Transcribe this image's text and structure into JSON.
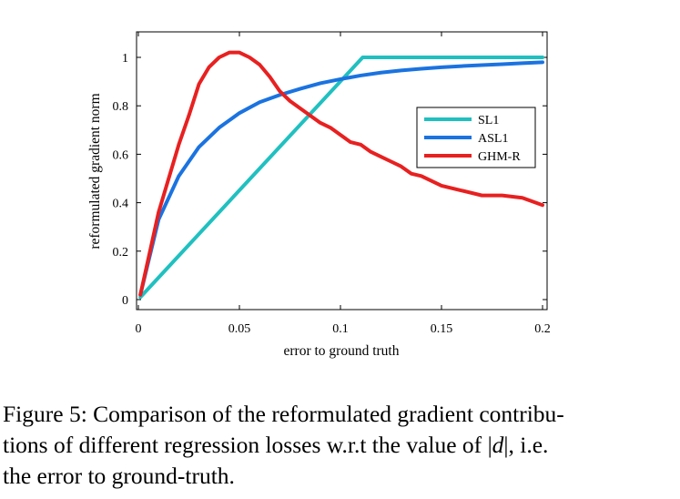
{
  "chart_data": {
    "type": "line",
    "title": "",
    "xlabel": "error to ground truth",
    "ylabel": "reformulated gradient norm",
    "xlim": [
      0,
      0.2
    ],
    "ylim": [
      0,
      1.08
    ],
    "xticks": [
      0,
      0.05,
      0.1,
      0.15,
      0.2
    ],
    "xtick_labels": [
      "0",
      "0.05",
      "0.1",
      "0.15",
      "0.2"
    ],
    "yticks": [
      0,
      0.2,
      0.4,
      0.6,
      0.8,
      1
    ],
    "ytick_labels": [
      "0",
      "0.2",
      "0.4",
      "0.6",
      "0.8",
      "1"
    ],
    "grid": false,
    "legend_position": "right-middle",
    "series": [
      {
        "name": "SL1",
        "color": "#20c0c0",
        "x": [
          0.001,
          0.111,
          0.2
        ],
        "y": [
          0.01,
          1.0,
          1.0
        ]
      },
      {
        "name": "ASL1",
        "color": "#1a73e0",
        "x": [
          0.001,
          0.01,
          0.02,
          0.03,
          0.04,
          0.05,
          0.06,
          0.07,
          0.08,
          0.09,
          0.1,
          0.11,
          0.12,
          0.13,
          0.14,
          0.15,
          0.16,
          0.17,
          0.18,
          0.19,
          0.2
        ],
        "y": [
          0.02,
          0.33,
          0.51,
          0.63,
          0.71,
          0.77,
          0.815,
          0.845,
          0.87,
          0.893,
          0.91,
          0.925,
          0.937,
          0.946,
          0.953,
          0.959,
          0.964,
          0.968,
          0.972,
          0.976,
          0.98
        ]
      },
      {
        "name": "GHM-R",
        "color": "#e82020",
        "x": [
          0.001,
          0.01,
          0.02,
          0.025,
          0.03,
          0.035,
          0.04,
          0.045,
          0.05,
          0.055,
          0.06,
          0.065,
          0.07,
          0.075,
          0.08,
          0.085,
          0.09,
          0.095,
          0.1,
          0.105,
          0.11,
          0.115,
          0.12,
          0.125,
          0.13,
          0.135,
          0.14,
          0.15,
          0.16,
          0.17,
          0.18,
          0.19,
          0.2
        ],
        "y": [
          0.02,
          0.36,
          0.64,
          0.76,
          0.89,
          0.96,
          1.0,
          1.02,
          1.02,
          1.0,
          0.97,
          0.92,
          0.86,
          0.82,
          0.79,
          0.76,
          0.73,
          0.71,
          0.68,
          0.65,
          0.64,
          0.61,
          0.59,
          0.57,
          0.55,
          0.52,
          0.51,
          0.47,
          0.45,
          0.43,
          0.43,
          0.42,
          0.39
        ]
      }
    ]
  },
  "caption": {
    "line1": "Figure 5: Comparison of the reformulated gradient contribu-",
    "line2_before": "tions of different regression losses w.r.t the value of ",
    "line2_math_open": "|",
    "line2_math_var": "d",
    "line2_math_close": "|",
    "line2_after": ", i.e.",
    "line3": "the error to ground-truth."
  }
}
